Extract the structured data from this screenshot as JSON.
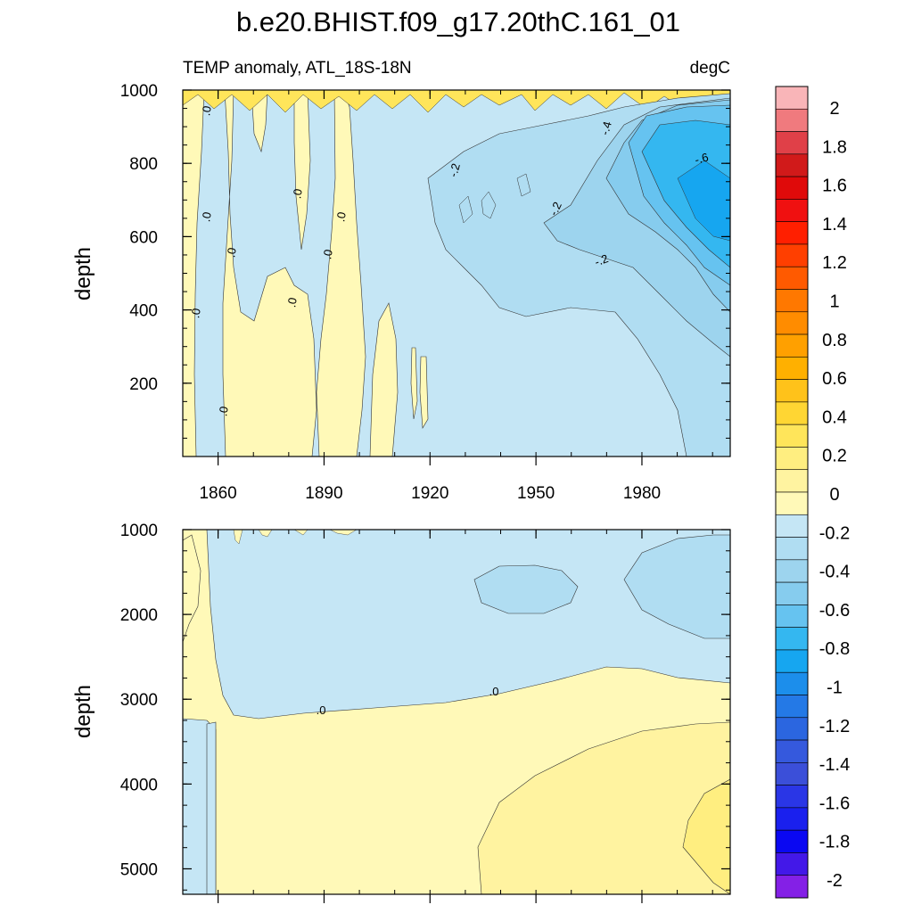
{
  "chart_data": {
    "type": "contour",
    "title": "b.e20.BHIST.f09_g17.20thC.161_01",
    "subtitle_left": "TEMP anomaly, ATL_18S-18N",
    "subtitle_right": "degC",
    "xlabel": "",
    "ylabel": "depth",
    "x_ticks": [
      "1860",
      "1890",
      "1920",
      "1950",
      "1980"
    ],
    "panels": [
      {
        "name": "upper",
        "ylim": [
          1000,
          0
        ],
        "y_ticks": [
          "200",
          "400",
          "600",
          "800",
          "1000"
        ],
        "contour_labels": [
          ".0",
          ".0",
          ".0",
          ".0",
          ".0",
          ".0",
          ".0",
          ".0",
          ".0",
          "-.2",
          "-.2",
          "-.2",
          "-.4",
          "-.6"
        ]
      },
      {
        "name": "lower",
        "ylim": [
          1000,
          5300
        ],
        "y_ticks": [
          "1000",
          "2000",
          "3000",
          "4000",
          "5000"
        ],
        "contour_labels": [
          ".0",
          ".0"
        ]
      }
    ],
    "colorbar": {
      "labels": [
        "2",
        "1.8",
        "1.6",
        "1.4",
        "1.2",
        "1",
        "0.8",
        "0.6",
        "0.4",
        "0.2",
        "0",
        "-0.2",
        "-0.4",
        "-0.6",
        "-0.8",
        "-1",
        "-1.2",
        "-1.4",
        "-1.6",
        "-1.8",
        "-2"
      ],
      "colors": [
        "#F9B5B8",
        "#F07A7E",
        "#E04048",
        "#D11A1A",
        "#E00A0A",
        "#F01010",
        "#FF1F00",
        "#FF3F00",
        "#FF5A00",
        "#FF7800",
        "#FF8C00",
        "#FFA000",
        "#FFB000",
        "#FFC21A",
        "#FFD633",
        "#FFE55A",
        "#FFEE80",
        "#FFF3A0",
        "#FFF9B8",
        "#C5E6F5",
        "#B0DDF2",
        "#9DD4EE",
        "#86CCEE",
        "#66C3F0",
        "#34B7F0",
        "#16A6F0",
        "#1C8EEB",
        "#2479E6",
        "#2B66E0",
        "#3559DD",
        "#3B4FD9",
        "#2A36E6",
        "#1A20EE",
        "#0A08F2",
        "#4318E8",
        "#8420E6"
      ]
    }
  }
}
